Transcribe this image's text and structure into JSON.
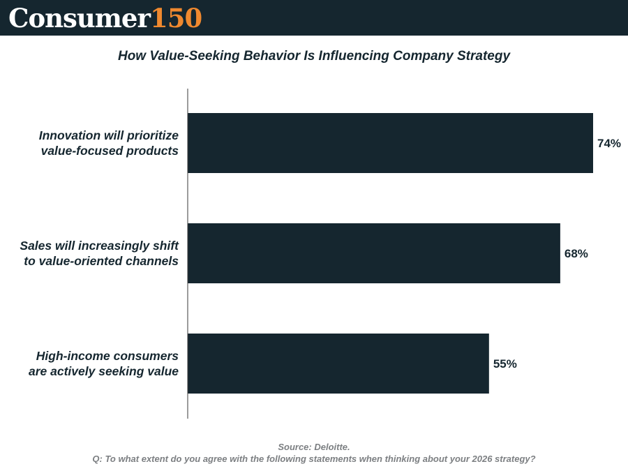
{
  "brand": {
    "word": "Consumer",
    "number": "150"
  },
  "colors": {
    "header_bg": "#15262f",
    "bar": "#15262f",
    "brand_accent": "#f0892f",
    "footer_text": "#7c7f82"
  },
  "chart_data": {
    "type": "bar",
    "orientation": "horizontal",
    "title": "How Value-Seeking Behavior Is Influencing Company Strategy",
    "categories": [
      [
        "Innovation will prioritize",
        "value-focused products"
      ],
      [
        "Sales will increasingly shift",
        "to value-oriented channels"
      ],
      [
        "High-income consumers",
        "are actively seeking value"
      ]
    ],
    "values": [
      74,
      68,
      55
    ],
    "value_labels": [
      "74%",
      "68%",
      "55%"
    ],
    "unit": "%",
    "xlim": [
      0,
      75
    ],
    "xlabel": "",
    "ylabel": "",
    "grid": false,
    "legend": "none"
  },
  "footer": {
    "source": "Source: Deloitte.",
    "question": "Q: To what extent do you agree with the following statements when thinking about your 2026 strategy?"
  }
}
